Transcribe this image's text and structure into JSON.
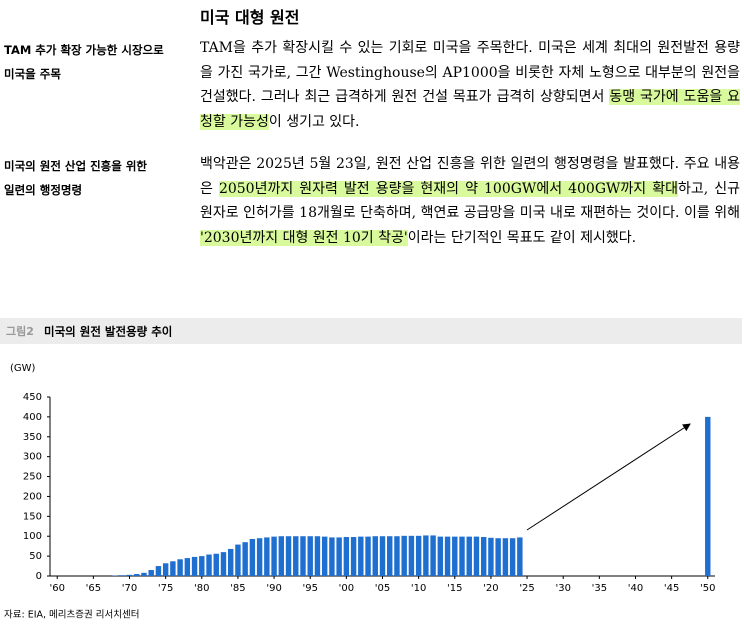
{
  "title": "미국 대형 원전",
  "sections": [
    {
      "label": [
        "TAM 추가 확장 가능한 시장으로",
        "미국을 주목"
      ],
      "paragraph": [
        {
          "text": "TAM을 추가 확장시킬 수 있는 기회로 미국을 주목한다. 미국은 세계 최대의 원전발전 용량을 가진 국가로, 그간 Westinghouse의 AP1000을 비롯한 자체 노형으로 대부분의 원전을 건설했다. 그러나 최근 급격하게 원전 건설 목표가 급격히 상향되면서 ",
          "highlight": false
        },
        {
          "text": "동맹 국가에 도움을 요청할 가능성",
          "highlight": true
        },
        {
          "text": "이 생기고 있다.",
          "highlight": false
        }
      ]
    },
    {
      "label": [
        "미국의 원전 산업 진흥을 위한",
        "일련의 행정명령"
      ],
      "paragraph": [
        {
          "text": "백악관은 2025년 5월 23일, 원전 산업 진흥을 위한 일련의 행정명령을 발표했다. 주요 내용은 ",
          "highlight": false
        },
        {
          "text": "2050년까지 원자력 발전 용량을 현재의 약 100GW에서 400GW까지 확대",
          "highlight": true
        },
        {
          "text": "하고, 신규 원자로 인허가를 18개월로 단축하며, 핵연료 공급망을 미국 내로 재편하는 것이다. 이를 위해 ",
          "highlight": false
        },
        {
          "text": "'2030년까지 대형 원전 10기 착공'",
          "highlight": true
        },
        {
          "text": "이라는 단기적인 목표도 같이 제시했다.",
          "highlight": false
        }
      ]
    }
  ],
  "figure_label": "그림2",
  "chart_data": {
    "type": "bar",
    "title": "미국의 원전 발전용량 추이",
    "y_label": "(GW)",
    "x": [
      1968,
      1969,
      1970,
      1971,
      1972,
      1973,
      1974,
      1975,
      1976,
      1977,
      1978,
      1979,
      1980,
      1981,
      1982,
      1983,
      1984,
      1985,
      1986,
      1987,
      1988,
      1989,
      1990,
      1991,
      1992,
      1993,
      1994,
      1995,
      1996,
      1997,
      1998,
      1999,
      2000,
      2001,
      2002,
      2003,
      2004,
      2005,
      2006,
      2007,
      2008,
      2009,
      2010,
      2011,
      2012,
      2013,
      2014,
      2015,
      2016,
      2017,
      2018,
      2019,
      2020,
      2021,
      2022,
      2023,
      2024,
      2050
    ],
    "values": [
      1,
      2,
      3,
      5,
      8,
      15,
      25,
      32,
      37,
      42,
      45,
      48,
      50,
      54,
      56,
      60,
      68,
      79,
      85,
      93,
      95,
      97,
      99,
      100,
      100,
      100,
      100,
      100,
      100,
      99,
      97,
      97,
      98,
      98,
      99,
      99,
      100,
      100,
      100,
      100,
      101,
      101,
      101,
      102,
      102,
      99,
      99,
      99,
      99,
      99,
      99,
      98,
      96,
      95,
      95,
      95,
      97,
      400
    ],
    "color": "#1f6fd0",
    "xlim": [
      1959,
      2051
    ],
    "ylim": [
      0,
      450
    ],
    "xticks": [
      {
        "value": 1960,
        "label": "'60"
      },
      {
        "value": 1965,
        "label": "'65"
      },
      {
        "value": 1970,
        "label": "'70"
      },
      {
        "value": 1975,
        "label": "'75"
      },
      {
        "value": 1980,
        "label": "'80"
      },
      {
        "value": 1985,
        "label": "'85"
      },
      {
        "value": 1990,
        "label": "'90"
      },
      {
        "value": 1995,
        "label": "'95"
      },
      {
        "value": 2000,
        "label": "'00"
      },
      {
        "value": 2005,
        "label": "'05"
      },
      {
        "value": 2010,
        "label": "'10"
      },
      {
        "value": 2015,
        "label": "'15"
      },
      {
        "value": 2020,
        "label": "'20"
      },
      {
        "value": 2025,
        "label": "'25"
      },
      {
        "value": 2030,
        "label": "'30"
      },
      {
        "value": 2035,
        "label": "'35"
      },
      {
        "value": 2040,
        "label": "'40"
      },
      {
        "value": 2045,
        "label": "'45"
      },
      {
        "value": 2050,
        "label": "'50"
      }
    ],
    "yticks": [
      0,
      50,
      100,
      150,
      200,
      250,
      300,
      350,
      400,
      450
    ]
  },
  "source": "자료: EIA, 메리츠증권 리서치센터"
}
